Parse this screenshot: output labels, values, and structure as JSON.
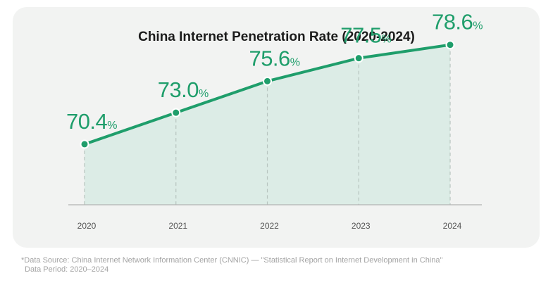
{
  "chart_data": {
    "type": "area",
    "title": "China Internet Penetration Rate (2020-2024)",
    "categories": [
      "2020",
      "2021",
      "2022",
      "2023",
      "2024"
    ],
    "values": [
      70.4,
      73.0,
      75.6,
      77.5,
      78.6
    ],
    "data_labels": [
      "70.4",
      "73.0",
      "75.6",
      "77.5",
      "78.6"
    ],
    "value_suffix": "%",
    "xlabel": "",
    "ylabel": "",
    "ylim": [
      65.4,
      82.3
    ],
    "grid": false,
    "legend": "none",
    "colors": {
      "line": "#1f9e6b",
      "area": "#dcece6",
      "marker_fill": "#1f9e6b",
      "marker_stroke": "#ffffff",
      "drop_line": "#b7c4bf",
      "baseline": "#b3b3b3"
    }
  },
  "footnote": {
    "source": "*Data Source: China Internet Network Information Center (CNNIC) — \"Statistical Report on Internet Development in China\"",
    "period": "Data Period: 2020–2024"
  }
}
